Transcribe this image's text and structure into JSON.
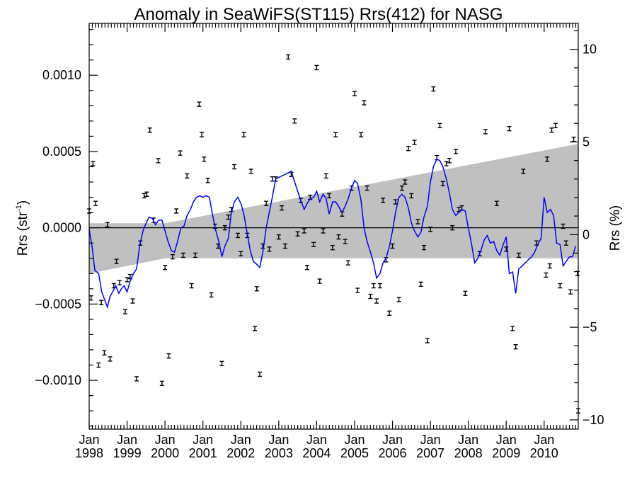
{
  "chart_data": {
    "type": "scatter",
    "title": "Anomaly in SeaWiFS(ST115) Rrs(412) for NASG",
    "ylabel": "Rrs (str",
    "ylabel_sup": "-1",
    "ylabel_suffix": ")",
    "y2label": "Rrs (%)",
    "xlim": [
      1998.0,
      2010.9
    ],
    "ylim": [
      -0.00132,
      0.00134
    ],
    "y2lim": [
      -10.5,
      11.4
    ],
    "yticks": [
      {
        "value": 0.001,
        "label": "0.0010"
      },
      {
        "value": 0.0005,
        "label": "0.0005"
      },
      {
        "value": 0.0,
        "label": "0.0000"
      },
      {
        "value": -0.0005,
        "label": "−0.0005"
      },
      {
        "value": -0.001,
        "label": "−0.0010"
      }
    ],
    "y2ticks": [
      {
        "value": 10,
        "label": "10"
      },
      {
        "value": 5,
        "label": "5"
      },
      {
        "value": 0,
        "label": "0"
      },
      {
        "value": -5,
        "label": "−5"
      },
      {
        "value": -10,
        "label": "−10"
      }
    ],
    "xticks": [
      {
        "value": 1998,
        "top": "Jan",
        "bottom": "1998"
      },
      {
        "value": 1999,
        "top": "Jan",
        "bottom": "1999"
      },
      {
        "value": 2000,
        "top": "Jan",
        "bottom": "2000"
      },
      {
        "value": 2001,
        "top": "Jan",
        "bottom": "2001"
      },
      {
        "value": 2002,
        "top": "Jan",
        "bottom": "2002"
      },
      {
        "value": 2003,
        "top": "Jan",
        "bottom": "2003"
      },
      {
        "value": 2004,
        "top": "Jan",
        "bottom": "2004"
      },
      {
        "value": 2005,
        "top": "Jan",
        "bottom": "2005"
      },
      {
        "value": 2006,
        "top": "Jan",
        "bottom": "2006"
      },
      {
        "value": 2007,
        "top": "Jan",
        "bottom": "2007"
      },
      {
        "value": 2008,
        "top": "Jan",
        "bottom": "2008"
      },
      {
        "value": 2009,
        "top": "Jan",
        "bottom": "2009"
      },
      {
        "value": 2010,
        "top": "Jan",
        "bottom": "2010"
      }
    ],
    "band": {
      "x": [
        1998.0,
        2000.0,
        2010.9
      ],
      "upper": [
        3e-05,
        3e-05,
        0.00055
      ],
      "lower": [
        -0.0003,
        -0.0002,
        -0.0002
      ],
      "color": "#c0c0c0"
    },
    "points_color": "#000000",
    "line_color": "#0000ff",
    "points": [
      [
        1998.0,
        0.00011
      ],
      [
        1998.05,
        -0.00046
      ],
      [
        1998.1,
        0.00042
      ],
      [
        1998.17,
        0.00016
      ],
      [
        1998.25,
        -0.0009
      ],
      [
        1998.32,
        -0.00049
      ],
      [
        1998.4,
        -0.00082
      ],
      [
        1998.48,
        2e-05
      ],
      [
        1998.55,
        -0.00086
      ],
      [
        1998.65,
        -0.00038
      ],
      [
        1998.72,
        -0.00022
      ],
      [
        1998.8,
        -0.00036
      ],
      [
        1998.95,
        -0.00055
      ],
      [
        1999.0,
        -0.00034
      ],
      [
        1999.08,
        -0.00032
      ],
      [
        1999.15,
        -0.00048
      ],
      [
        1999.25,
        -0.00099
      ],
      [
        1999.35,
        -0.0001
      ],
      [
        1999.45,
        0.00021
      ],
      [
        1999.52,
        0.00022
      ],
      [
        1999.6,
        0.00064
      ],
      [
        1999.7,
        5e-05
      ],
      [
        1999.82,
        0.00044
      ],
      [
        1999.92,
        -0.00102
      ],
      [
        2000.0,
        -0.00026
      ],
      [
        2000.1,
        -0.00084
      ],
      [
        2000.2,
        -0.00019
      ],
      [
        2000.3,
        0.00011
      ],
      [
        2000.4,
        0.00049
      ],
      [
        2000.48,
        -0.00018
      ],
      [
        2000.58,
        0.00034
      ],
      [
        2000.7,
        -0.00038
      ],
      [
        2000.8,
        -0.00018
      ],
      [
        2000.9,
        0.00081
      ],
      [
        2000.97,
        0.00061
      ],
      [
        2001.03,
        0.00045
      ],
      [
        2001.13,
        0.00031
      ],
      [
        2001.22,
        -0.00044
      ],
      [
        2001.32,
        1e-05
      ],
      [
        2001.4,
        -0.00012
      ],
      [
        2001.5,
        -0.00089
      ],
      [
        2001.58,
        0.0
      ],
      [
        2001.67,
        7e-05
      ],
      [
        2001.75,
        0.00012
      ],
      [
        2001.83,
        0.0004
      ],
      [
        2001.92,
        -5e-05
      ],
      [
        2002.0,
        -0.00017
      ],
      [
        2002.08,
        0.00061
      ],
      [
        2002.17,
        -5e-05
      ],
      [
        2002.27,
        0.00037
      ],
      [
        2002.37,
        -0.00066
      ],
      [
        2002.42,
        -0.0004
      ],
      [
        2002.5,
        -0.00096
      ],
      [
        2002.58,
        -0.00012
      ],
      [
        2002.67,
        0.00016
      ],
      [
        2002.75,
        -0.00014
      ],
      [
        2002.83,
        0.00032
      ],
      [
        2002.92,
        0.00032
      ],
      [
        2003.0,
        -6e-05
      ],
      [
        2003.08,
        0.00013
      ],
      [
        2003.17,
        -0.00012
      ],
      [
        2003.25,
        0.00112
      ],
      [
        2003.33,
        0.00035
      ],
      [
        2003.42,
        0.0007
      ],
      [
        2003.5,
        -4e-05
      ],
      [
        2003.58,
        0.00018
      ],
      [
        2003.67,
        -2e-05
      ],
      [
        2003.75,
        -0.00026
      ],
      [
        2003.83,
        0.0002
      ],
      [
        2003.92,
        -0.00011
      ],
      [
        2004.0,
        0.00105
      ],
      [
        2004.08,
        -0.00035
      ],
      [
        2004.17,
        -2e-05
      ],
      [
        2004.25,
        0.00034
      ],
      [
        2004.33,
        0.00021
      ],
      [
        2004.42,
        -0.00013
      ],
      [
        2004.5,
        0.00061
      ],
      [
        2004.58,
        -6e-05
      ],
      [
        2004.67,
        9e-05
      ],
      [
        2004.75,
        -9e-05
      ],
      [
        2004.83,
        -0.00023
      ],
      [
        2004.92,
        0.00026
      ],
      [
        2005.0,
        0.00088
      ],
      [
        2005.08,
        -0.00041
      ],
      [
        2005.17,
        0.00061
      ],
      [
        2005.25,
        0.00082
      ],
      [
        2005.33,
        0.00026
      ],
      [
        2005.42,
        -0.00045
      ],
      [
        2005.5,
        -0.00038
      ],
      [
        2005.58,
        -0.00048
      ],
      [
        2005.67,
        -0.00038
      ],
      [
        2005.75,
        0.00018
      ],
      [
        2005.83,
        -0.00021
      ],
      [
        2005.92,
        -0.00056
      ],
      [
        2006.0,
        -0.00012
      ],
      [
        2006.08,
        0.00017
      ],
      [
        2006.17,
        -0.00047
      ],
      [
        2006.25,
        0.00026
      ],
      [
        2006.33,
        0.0003
      ],
      [
        2006.42,
        0.00052
      ],
      [
        2006.5,
        0.00021
      ],
      [
        2006.58,
        0.00056
      ],
      [
        2006.67,
        4e-05
      ],
      [
        2006.75,
        -0.00037
      ],
      [
        2006.83,
        -0.00013
      ],
      [
        2006.92,
        -0.00074
      ],
      [
        2007.0,
        -1e-05
      ],
      [
        2007.08,
        0.00091
      ],
      [
        2007.17,
        0.00046
      ],
      [
        2007.25,
        0.00067
      ],
      [
        2007.33,
        0.00029
      ],
      [
        2007.42,
        0.00042
      ],
      [
        2007.5,
        0.00044
      ],
      [
        2007.58,
        0.0
      ],
      [
        2007.67,
        0.0005
      ],
      [
        2007.75,
        0.00012
      ],
      [
        2007.83,
        0.00013
      ],
      [
        2007.92,
        -0.00043
      ],
      [
        2008.3,
        -0.00017
      ],
      [
        2008.45,
        0.00063
      ],
      [
        2008.75,
        0.00016
      ],
      [
        2009.0,
        -0.00014
      ],
      [
        2009.08,
        0.00065
      ],
      [
        2009.17,
        -0.00066
      ],
      [
        2009.25,
        -0.00078
      ],
      [
        2009.33,
        -0.00018
      ],
      [
        2009.45,
        0.00037
      ],
      [
        2009.8,
        -0.0001
      ],
      [
        2010.05,
        -0.00031
      ],
      [
        2010.08,
        0.00045
      ],
      [
        2010.15,
        -0.00025
      ],
      [
        2010.2,
        0.00064
      ],
      [
        2010.3,
        0.00067
      ],
      [
        2010.42,
        -0.00038
      ],
      [
        2010.5,
        1e-05
      ],
      [
        2010.58,
        -0.0001
      ],
      [
        2010.7,
        -0.00042
      ],
      [
        2010.78,
        0.00058
      ],
      [
        2010.88,
        -0.0003
      ],
      [
        2010.9,
        -0.0012
      ]
    ],
    "line": [
      [
        1998.0,
        -1e-05
      ],
      [
        1998.08,
        -0.00013
      ],
      [
        1998.15,
        -0.00028
      ],
      [
        1998.25,
        -0.0003
      ],
      [
        1998.33,
        -0.00042
      ],
      [
        1998.42,
        -0.00048
      ],
      [
        1998.48,
        -0.00052
      ],
      [
        1998.55,
        -0.00045
      ],
      [
        1998.62,
        -0.00042
      ],
      [
        1998.7,
        -0.00038
      ],
      [
        1998.78,
        -0.00043
      ],
      [
        1998.85,
        -0.0004
      ],
      [
        1998.92,
        -0.00038
      ],
      [
        1999.0,
        -0.00042
      ],
      [
        1999.08,
        -0.00035
      ],
      [
        1999.17,
        -0.0003
      ],
      [
        1999.25,
        -0.00027
      ],
      [
        1999.33,
        -0.00012
      ],
      [
        1999.42,
        -2e-05
      ],
      [
        1999.5,
        3e-05
      ],
      [
        1999.58,
        7e-05
      ],
      [
        1999.67,
        6e-05
      ],
      [
        1999.75,
        2e-05
      ],
      [
        1999.83,
        5e-05
      ],
      [
        1999.92,
        5e-05
      ],
      [
        2000.0,
        -2e-05
      ],
      [
        2000.08,
        -9e-05
      ],
      [
        2000.17,
        -0.00015
      ],
      [
        2000.25,
        -0.00016
      ],
      [
        2000.33,
        -9e-05
      ],
      [
        2000.42,
        0.0
      ],
      [
        2000.5,
        1e-05
      ],
      [
        2000.58,
        8e-05
      ],
      [
        2000.67,
        0.00012
      ],
      [
        2000.75,
        0.00017
      ],
      [
        2000.83,
        0.0002
      ],
      [
        2000.92,
        0.00021
      ],
      [
        2001.0,
        0.0002
      ],
      [
        2001.08,
        0.00021
      ],
      [
        2001.17,
        0.0002
      ],
      [
        2001.25,
        9e-05
      ],
      [
        2001.33,
        -1e-05
      ],
      [
        2001.42,
        -9e-05
      ],
      [
        2001.5,
        -0.00019
      ],
      [
        2001.58,
        -0.00012
      ],
      [
        2001.67,
        -7e-05
      ],
      [
        2001.75,
        0.0001
      ],
      [
        2001.83,
        0.00017
      ],
      [
        2001.92,
        0.0002
      ],
      [
        2002.0,
        0.00016
      ],
      [
        2002.08,
        9e-05
      ],
      [
        2002.17,
        -4e-05
      ],
      [
        2002.25,
        -0.00015
      ],
      [
        2002.33,
        -0.00022
      ],
      [
        2002.42,
        -0.00024
      ],
      [
        2002.5,
        -0.00026
      ],
      [
        2002.58,
        -0.00016
      ],
      [
        2002.67,
        0.0
      ],
      [
        2002.75,
        0.0001
      ],
      [
        2002.83,
        0.0002
      ],
      [
        2002.92,
        0.00032
      ],
      [
        2003.0,
        0.00033
      ],
      [
        2003.08,
        0.00034
      ],
      [
        2003.17,
        0.00035
      ],
      [
        2003.25,
        0.00036
      ],
      [
        2003.33,
        0.00037
      ],
      [
        2003.42,
        0.0003
      ],
      [
        2003.5,
        0.00024
      ],
      [
        2003.58,
        0.00018
      ],
      [
        2003.67,
        0.00012
      ],
      [
        2003.75,
        0.00016
      ],
      [
        2003.83,
        0.00019
      ],
      [
        2003.92,
        0.0002
      ],
      [
        2004.0,
        0.00024
      ],
      [
        2004.08,
        0.00017
      ],
      [
        2004.17,
        0.00022
      ],
      [
        2004.25,
        0.00019
      ],
      [
        2004.33,
        9e-05
      ],
      [
        2004.42,
        0.00017
      ],
      [
        2004.5,
        0.00017
      ],
      [
        2004.58,
        0.00014
      ],
      [
        2004.67,
        0.0001
      ],
      [
        2004.75,
        0.00014
      ],
      [
        2004.83,
        0.00019
      ],
      [
        2004.92,
        0.00026
      ],
      [
        2005.0,
        0.00031
      ],
      [
        2005.08,
        0.00029
      ],
      [
        2005.17,
        0.00018
      ],
      [
        2005.25,
        0.0
      ],
      [
        2005.33,
        -9e-05
      ],
      [
        2005.42,
        -0.00016
      ],
      [
        2005.5,
        -0.00023
      ],
      [
        2005.58,
        -0.00033
      ],
      [
        2005.67,
        -0.0003
      ],
      [
        2005.75,
        -0.00023
      ],
      [
        2005.83,
        -0.0002
      ],
      [
        2005.92,
        -0.00012
      ],
      [
        2006.0,
        -2e-05
      ],
      [
        2006.08,
        0.0001
      ],
      [
        2006.17,
        0.0002
      ],
      [
        2006.25,
        0.00022
      ],
      [
        2006.33,
        0.0002
      ],
      [
        2006.42,
        0.00013
      ],
      [
        2006.5,
        3e-05
      ],
      [
        2006.58,
        -2e-05
      ],
      [
        2006.67,
        -6e-05
      ],
      [
        2006.75,
        -3e-05
      ],
      [
        2006.83,
        7e-05
      ],
      [
        2006.92,
        0.00014
      ],
      [
        2007.0,
        0.0003
      ],
      [
        2007.08,
        0.0004
      ],
      [
        2007.17,
        0.00045
      ],
      [
        2007.25,
        0.00044
      ],
      [
        2007.33,
        0.0004
      ],
      [
        2007.42,
        0.00032
      ],
      [
        2007.5,
        0.00023
      ],
      [
        2007.58,
        0.00012
      ],
      [
        2007.67,
        8e-05
      ],
      [
        2007.75,
        0.0001
      ],
      [
        2007.83,
        0.00012
      ],
      [
        2007.92,
        0.00011
      ],
      [
        2008.0,
        0.0
      ],
      [
        2008.08,
        -0.0001
      ],
      [
        2008.17,
        -0.00023
      ],
      [
        2008.25,
        -0.0002
      ],
      [
        2008.33,
        -0.00015
      ],
      [
        2008.42,
        -8e-05
      ],
      [
        2008.5,
        -5e-05
      ],
      [
        2008.58,
        -0.0001
      ],
      [
        2008.67,
        -9e-05
      ],
      [
        2008.75,
        -0.00015
      ],
      [
        2008.83,
        -0.00018
      ],
      [
        2008.92,
        -0.00011
      ],
      [
        2009.0,
        -6e-05
      ],
      [
        2009.08,
        -0.0003
      ],
      [
        2009.17,
        -0.00029
      ],
      [
        2009.25,
        -0.00043
      ],
      [
        2009.33,
        -0.00027
      ],
      [
        2009.42,
        -0.00025
      ],
      [
        2009.5,
        -0.00023
      ],
      [
        2009.58,
        -0.00021
      ],
      [
        2009.67,
        -0.00019
      ],
      [
        2009.75,
        -0.00016
      ],
      [
        2009.83,
        -0.00011
      ],
      [
        2009.92,
        -7e-05
      ],
      [
        2010.0,
        0.0002
      ],
      [
        2010.08,
        0.0001
      ],
      [
        2010.17,
        0.00012
      ],
      [
        2010.25,
        8e-05
      ],
      [
        2010.33,
        -0.0001
      ],
      [
        2010.42,
        -0.00011
      ],
      [
        2010.5,
        -0.00025
      ],
      [
        2010.58,
        -0.00022
      ],
      [
        2010.67,
        -0.00019
      ],
      [
        2010.75,
        -0.00019
      ],
      [
        2010.83,
        -0.00012
      ]
    ]
  }
}
